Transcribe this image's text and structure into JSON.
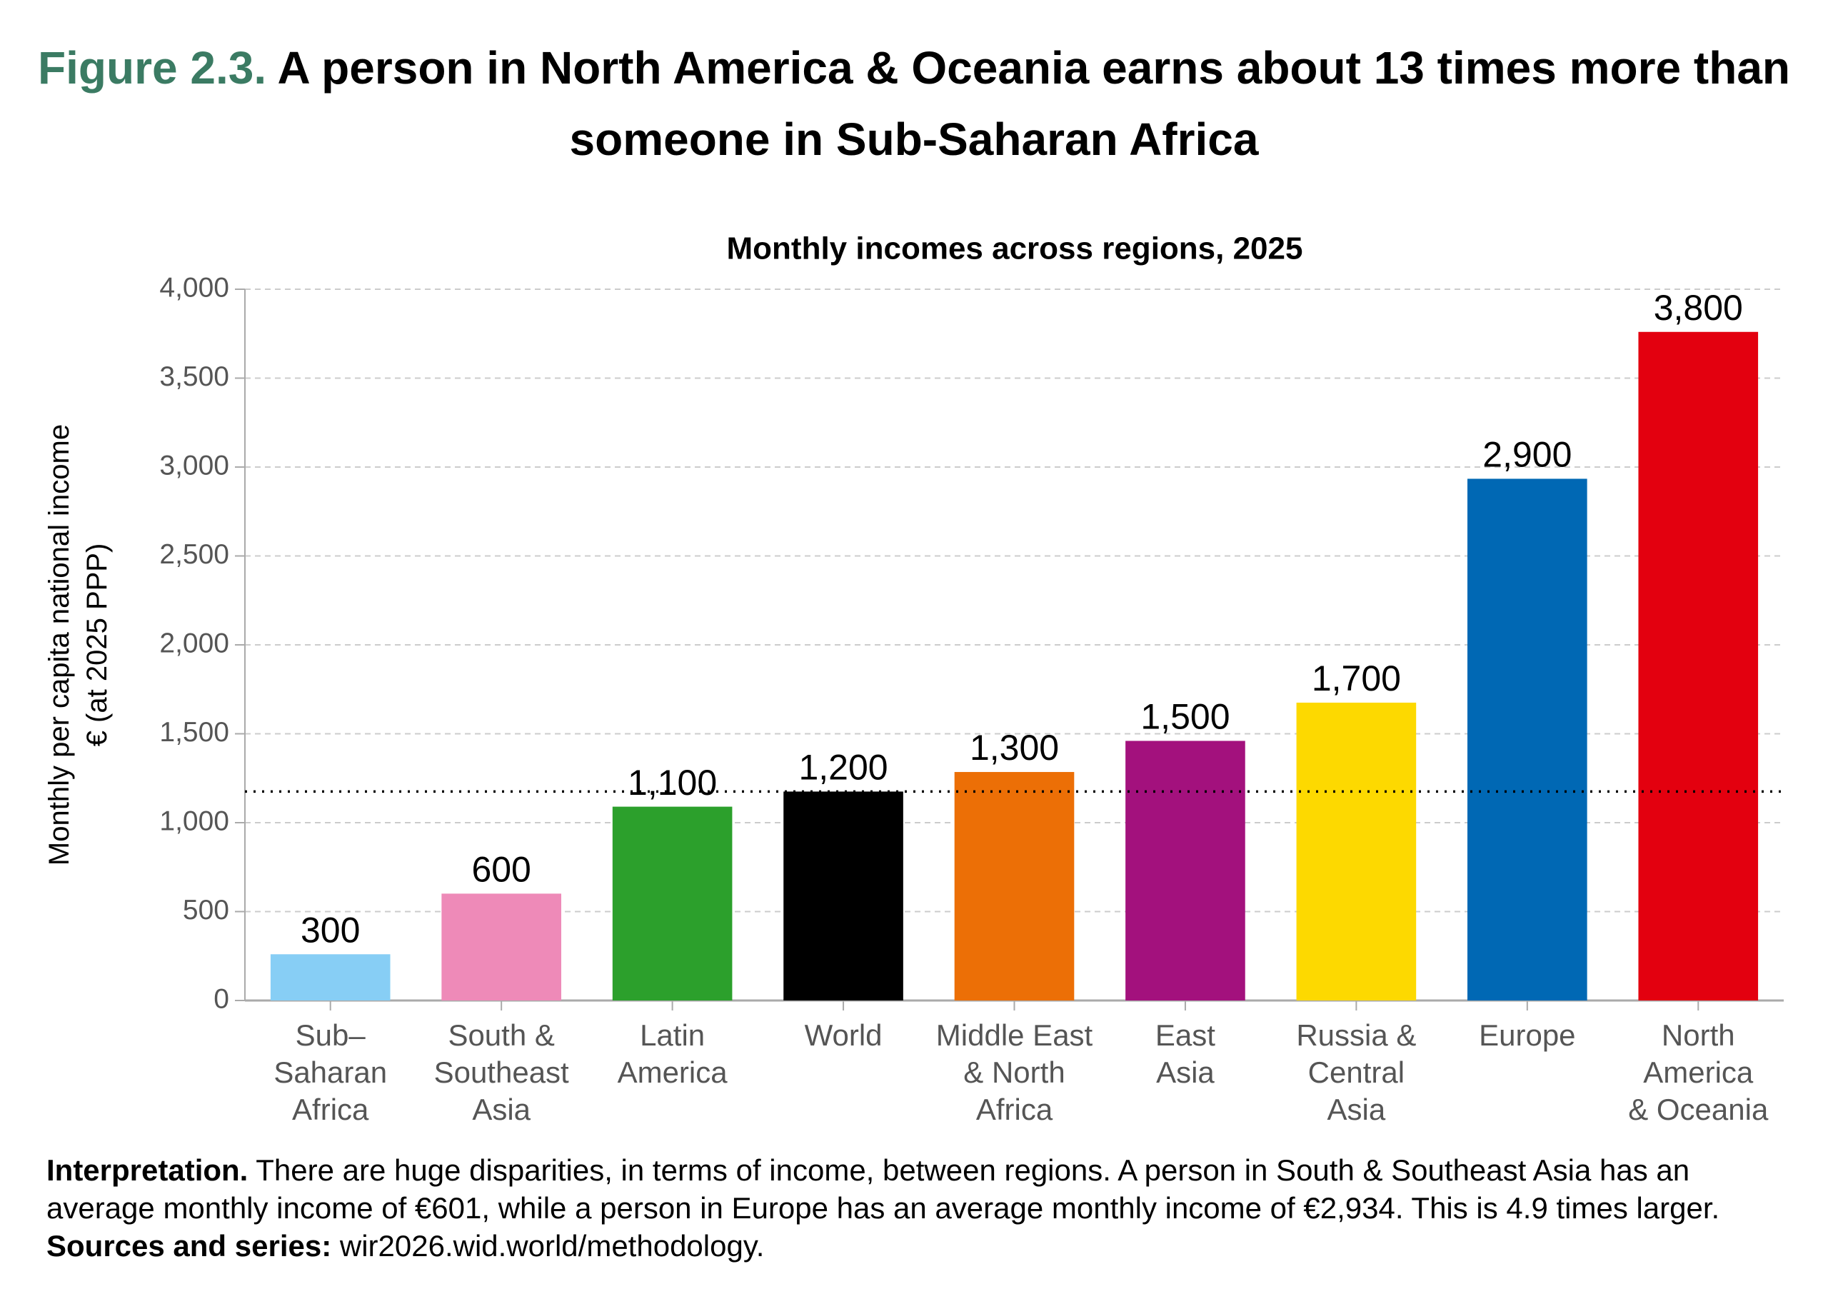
{
  "header": {
    "figure_label": "Figure 2.3.",
    "title": "A person in North America & Oceania earns about 13 times more than someone in Sub-Saharan Africa"
  },
  "chart_data": {
    "type": "bar",
    "title": "Monthly incomes across regions, 2025",
    "y_label": [
      "Monthly per capita national income",
      "€ (at 2025 PPP)"
    ],
    "categories": [
      [
        "Sub–",
        "Saharan",
        "Africa"
      ],
      [
        "South &",
        "Southeast",
        "Asia"
      ],
      [
        "Latin",
        "America"
      ],
      [
        "World"
      ],
      [
        "Middle East",
        "& North",
        "Africa"
      ],
      [
        "East",
        "Asia"
      ],
      [
        "Russia &",
        "Central",
        "Asia"
      ],
      [
        "Europe"
      ],
      [
        "North",
        "America",
        "& Oceania"
      ]
    ],
    "values": [
      260,
      601,
      1090,
      1175,
      1285,
      1460,
      1675,
      2934,
      3760
    ],
    "value_labels": [
      "300",
      "600",
      "1,100",
      "1,200",
      "1,300",
      "1,500",
      "1,700",
      "2,900",
      "3,800"
    ],
    "colors": [
      "#87cef5",
      "#ee8ab8",
      "#2ca02c",
      "#000000",
      "#ec6f06",
      "#a3117d",
      "#fdd900",
      "#0068b4",
      "#e3000f"
    ],
    "ylim": [
      0,
      4000
    ],
    "yticks": [
      0,
      {
        "value": 500,
        "label": "500"
      },
      {
        "value": 1000,
        "label": "1,000"
      },
      {
        "value": 1500,
        "label": "1,500"
      },
      {
        "value": 2000,
        "label": "2,000"
      },
      {
        "value": 2500,
        "label": "2,500"
      },
      {
        "value": 3000,
        "label": "3,000"
      },
      {
        "value": 3500,
        "label": "3,500"
      },
      {
        "value": 4000,
        "label": "4,000"
      }
    ],
    "grid": true
  },
  "footer": {
    "label1": "Interpretation.",
    "text1": "There are huge disparities, in terms of income, between regions. A person in South & Southeast Asia has an average monthly income of €601, while a person in Europe has an average monthly income of €2,934. This is 4.9 times larger.",
    "label2": "Sources and series:",
    "text2": "wir2026.wid.world/methodology."
  }
}
